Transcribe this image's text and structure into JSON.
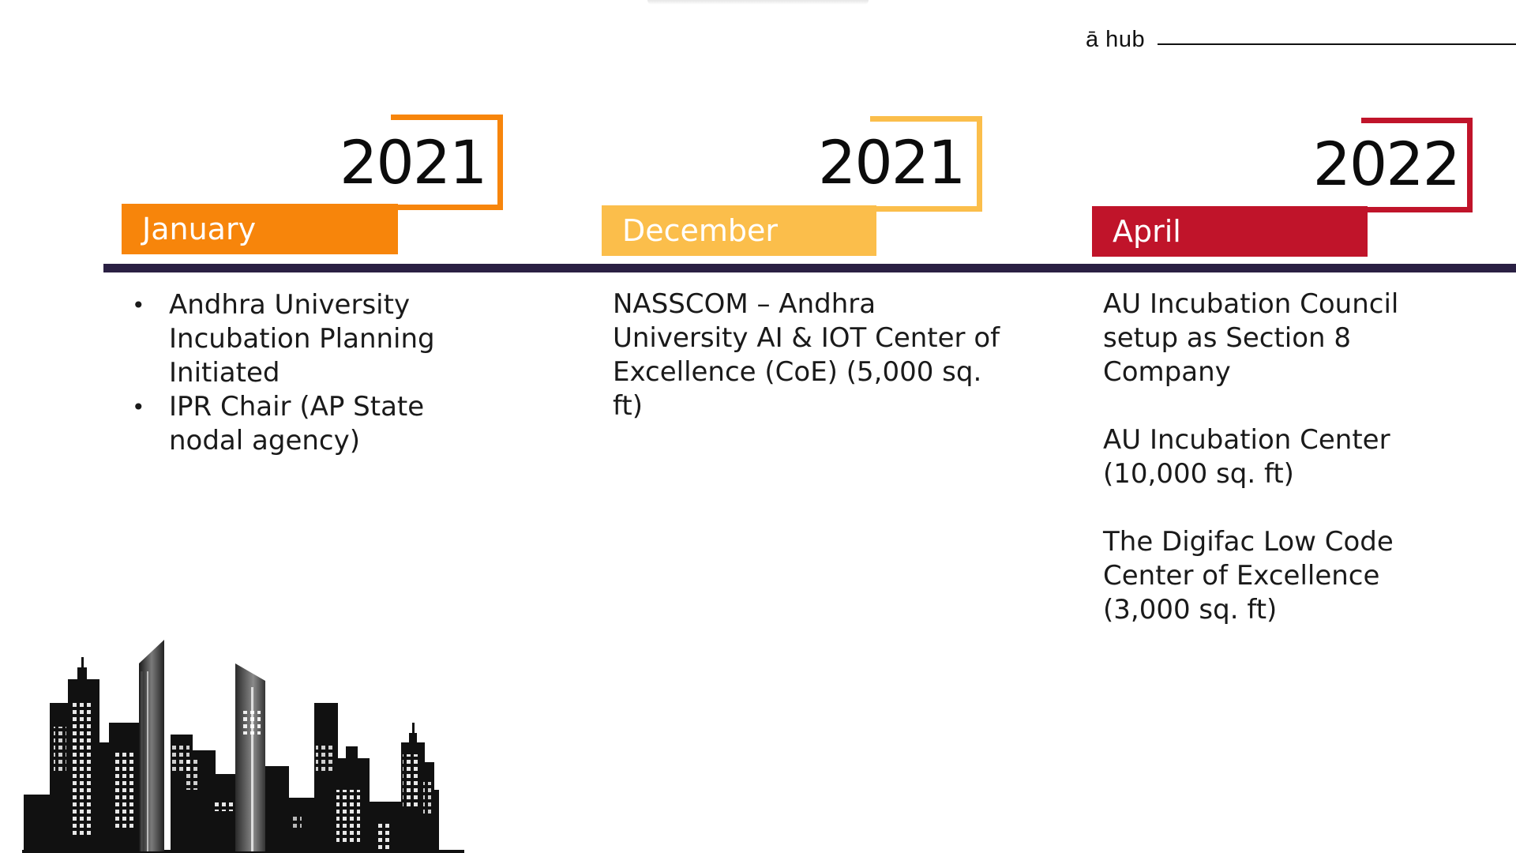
{
  "brand": {
    "text": "ā hub"
  },
  "timeline": {
    "bar_color": "#2a2043",
    "milestones": [
      {
        "year": "2021",
        "month": "January",
        "color": "#f7850b",
        "items": [
          "Andhra University Incubation Planning Initiated",
          "IPR Chair (AP State nodal agency)"
        ]
      },
      {
        "year": "2021",
        "month": "December",
        "color": "#fbbe4b",
        "paragraphs": [
          "NASSCOM – Andhra University AI & IOT Center of Excellence (CoE) (5,000 sq. ft)"
        ]
      },
      {
        "year": "2022",
        "month": "April",
        "color": "#c0142a",
        "paragraphs": [
          "AU Incubation Council setup as Section 8 Company",
          "AU Incubation Center (10,000 sq. ft)",
          "The Digifac Low Code Center of Excellence (3,000 sq. ft)"
        ]
      }
    ]
  },
  "decoration": {
    "skyline_icon": "city-skyline-icon"
  }
}
